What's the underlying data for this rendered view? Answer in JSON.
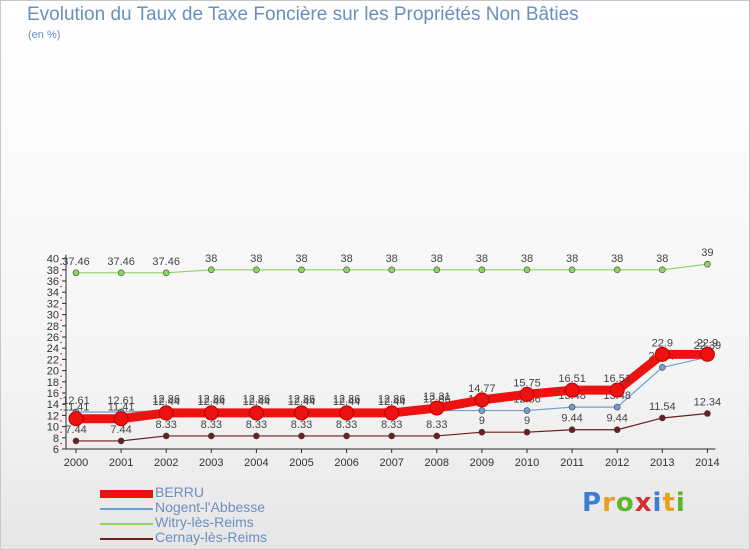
{
  "title": "Evolution du Taux de Taxe Foncière sur les Propriétés Non Bâties",
  "subtitle": "(en %)",
  "logo_text": "Proxiti",
  "chart_data": {
    "type": "line",
    "title": "Evolution du Taux de Taxe Foncière sur les Propriétés Non Bâties",
    "ylabel": "(en %)",
    "xlabel": "",
    "ylim": [
      6,
      40
    ],
    "yticks": [
      6,
      8,
      10,
      12,
      14,
      16,
      18,
      20,
      22,
      24,
      26,
      28,
      30,
      32,
      34,
      36,
      38,
      40
    ],
    "x": [
      "2000",
      "2001",
      "2002",
      "2003",
      "2004",
      "2005",
      "2006",
      "2007",
      "2008",
      "2009",
      "2010",
      "2011",
      "2012",
      "2013",
      "2014"
    ],
    "series": [
      {
        "name": "Witry-lès-Reims",
        "color": "#8dd35f",
        "values": [
          37.46,
          37.46,
          37.46,
          38,
          38,
          38,
          38,
          38,
          38,
          38,
          38,
          38,
          38,
          38,
          39
        ],
        "labels": [
          "37.46",
          "37.46",
          "37.46",
          "38",
          "38",
          "38",
          "38",
          "38",
          "38",
          "38",
          "38",
          "38",
          "38",
          "38",
          "39"
        ]
      },
      {
        "name": "Nogent-l'Abbesse",
        "color": "#6ea0d0",
        "values": [
          12.61,
          12.61,
          12.86,
          12.86,
          12.86,
          12.86,
          12.86,
          12.86,
          12.86,
          12.86,
          12.86,
          13.48,
          13.48,
          20.57,
          22.39
        ],
        "labels": [
          "12.61",
          "12.61",
          "12.86",
          "12.86",
          "12.86",
          "12.86",
          "12.86",
          "12.86",
          "12.86",
          "12.86",
          "12.86",
          "13.48",
          "13.48",
          "20.57",
          "22.39"
        ]
      },
      {
        "name": "Cernay-lès-Reims",
        "color": "#6b1f1f",
        "values": [
          7.44,
          7.44,
          8.33,
          8.33,
          8.33,
          8.33,
          8.33,
          8.33,
          8.33,
          9,
          9,
          9.44,
          9.44,
          11.54,
          12.34
        ],
        "labels": [
          "7.44",
          "7.44",
          "8.33",
          "8.33",
          "8.33",
          "8.33",
          "8.33",
          "8.33",
          "8.33",
          "9",
          "9",
          "9.44",
          "9.44",
          "11.54",
          "12.34"
        ]
      },
      {
        "name": "BERRU",
        "color": "#ee1111",
        "values": [
          11.41,
          11.41,
          12.44,
          12.44,
          12.44,
          12.44,
          12.44,
          12.44,
          13.31,
          14.77,
          15.75,
          16.51,
          16.51,
          22.9,
          22.9
        ],
        "labels": [
          "11.41",
          "11.41",
          "12.44",
          "12.44",
          "12.44",
          "12.44",
          "12.44",
          "12.44",
          "13.31",
          "14.77",
          "15.75",
          "16.51",
          "16.51",
          "22.9",
          "22.9"
        ]
      }
    ],
    "legend_order": [
      "BERRU",
      "Nogent-l'Abbesse",
      "Witry-lès-Reims",
      "Cernay-lès-Reims"
    ],
    "legend_position": "bottom-left",
    "grid": false
  }
}
